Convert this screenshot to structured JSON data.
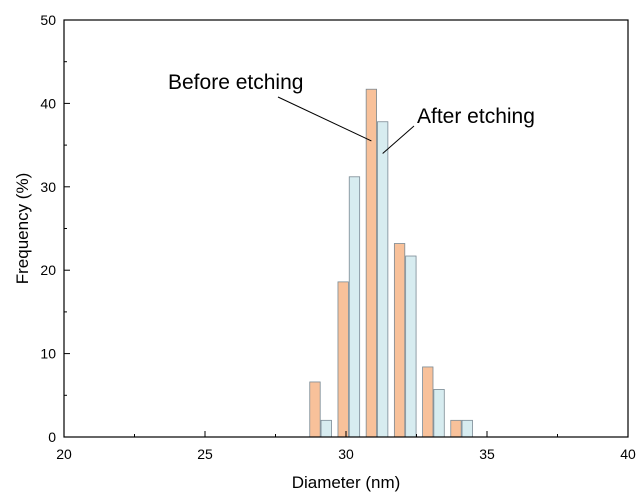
{
  "chart_data": {
    "type": "bar",
    "xlabel": "Diameter (nm)",
    "ylabel": "Frequency (%)",
    "xlim": [
      20,
      40
    ],
    "ylim": [
      0,
      50
    ],
    "x_ticks": [
      20,
      25,
      30,
      35,
      40
    ],
    "y_ticks": [
      0,
      10,
      20,
      30,
      40,
      50
    ],
    "grid": false,
    "series": [
      {
        "name": "Before etching",
        "color": "#f8c19a",
        "points": [
          {
            "x": 28.9,
            "y": 6.6
          },
          {
            "x": 29.9,
            "y": 18.6
          },
          {
            "x": 30.9,
            "y": 41.7
          },
          {
            "x": 31.9,
            "y": 23.2
          },
          {
            "x": 32.9,
            "y": 8.4
          },
          {
            "x": 33.9,
            "y": 2.0
          }
        ]
      },
      {
        "name": "After etching",
        "color": "#d7ecf0",
        "points": [
          {
            "x": 29.3,
            "y": 2.0
          },
          {
            "x": 30.3,
            "y": 31.2
          },
          {
            "x": 31.3,
            "y": 37.8
          },
          {
            "x": 32.3,
            "y": 21.7
          },
          {
            "x": 33.3,
            "y": 5.7
          },
          {
            "x": 34.3,
            "y": 2.0
          }
        ]
      }
    ],
    "annotations": [
      {
        "text": "Before etching",
        "target_series": "Before etching",
        "target": {
          "x": 30.9,
          "y": 35.5
        }
      },
      {
        "text": "After etching",
        "target_series": "After etching",
        "target": {
          "x": 31.3,
          "y": 34.0
        }
      }
    ]
  }
}
